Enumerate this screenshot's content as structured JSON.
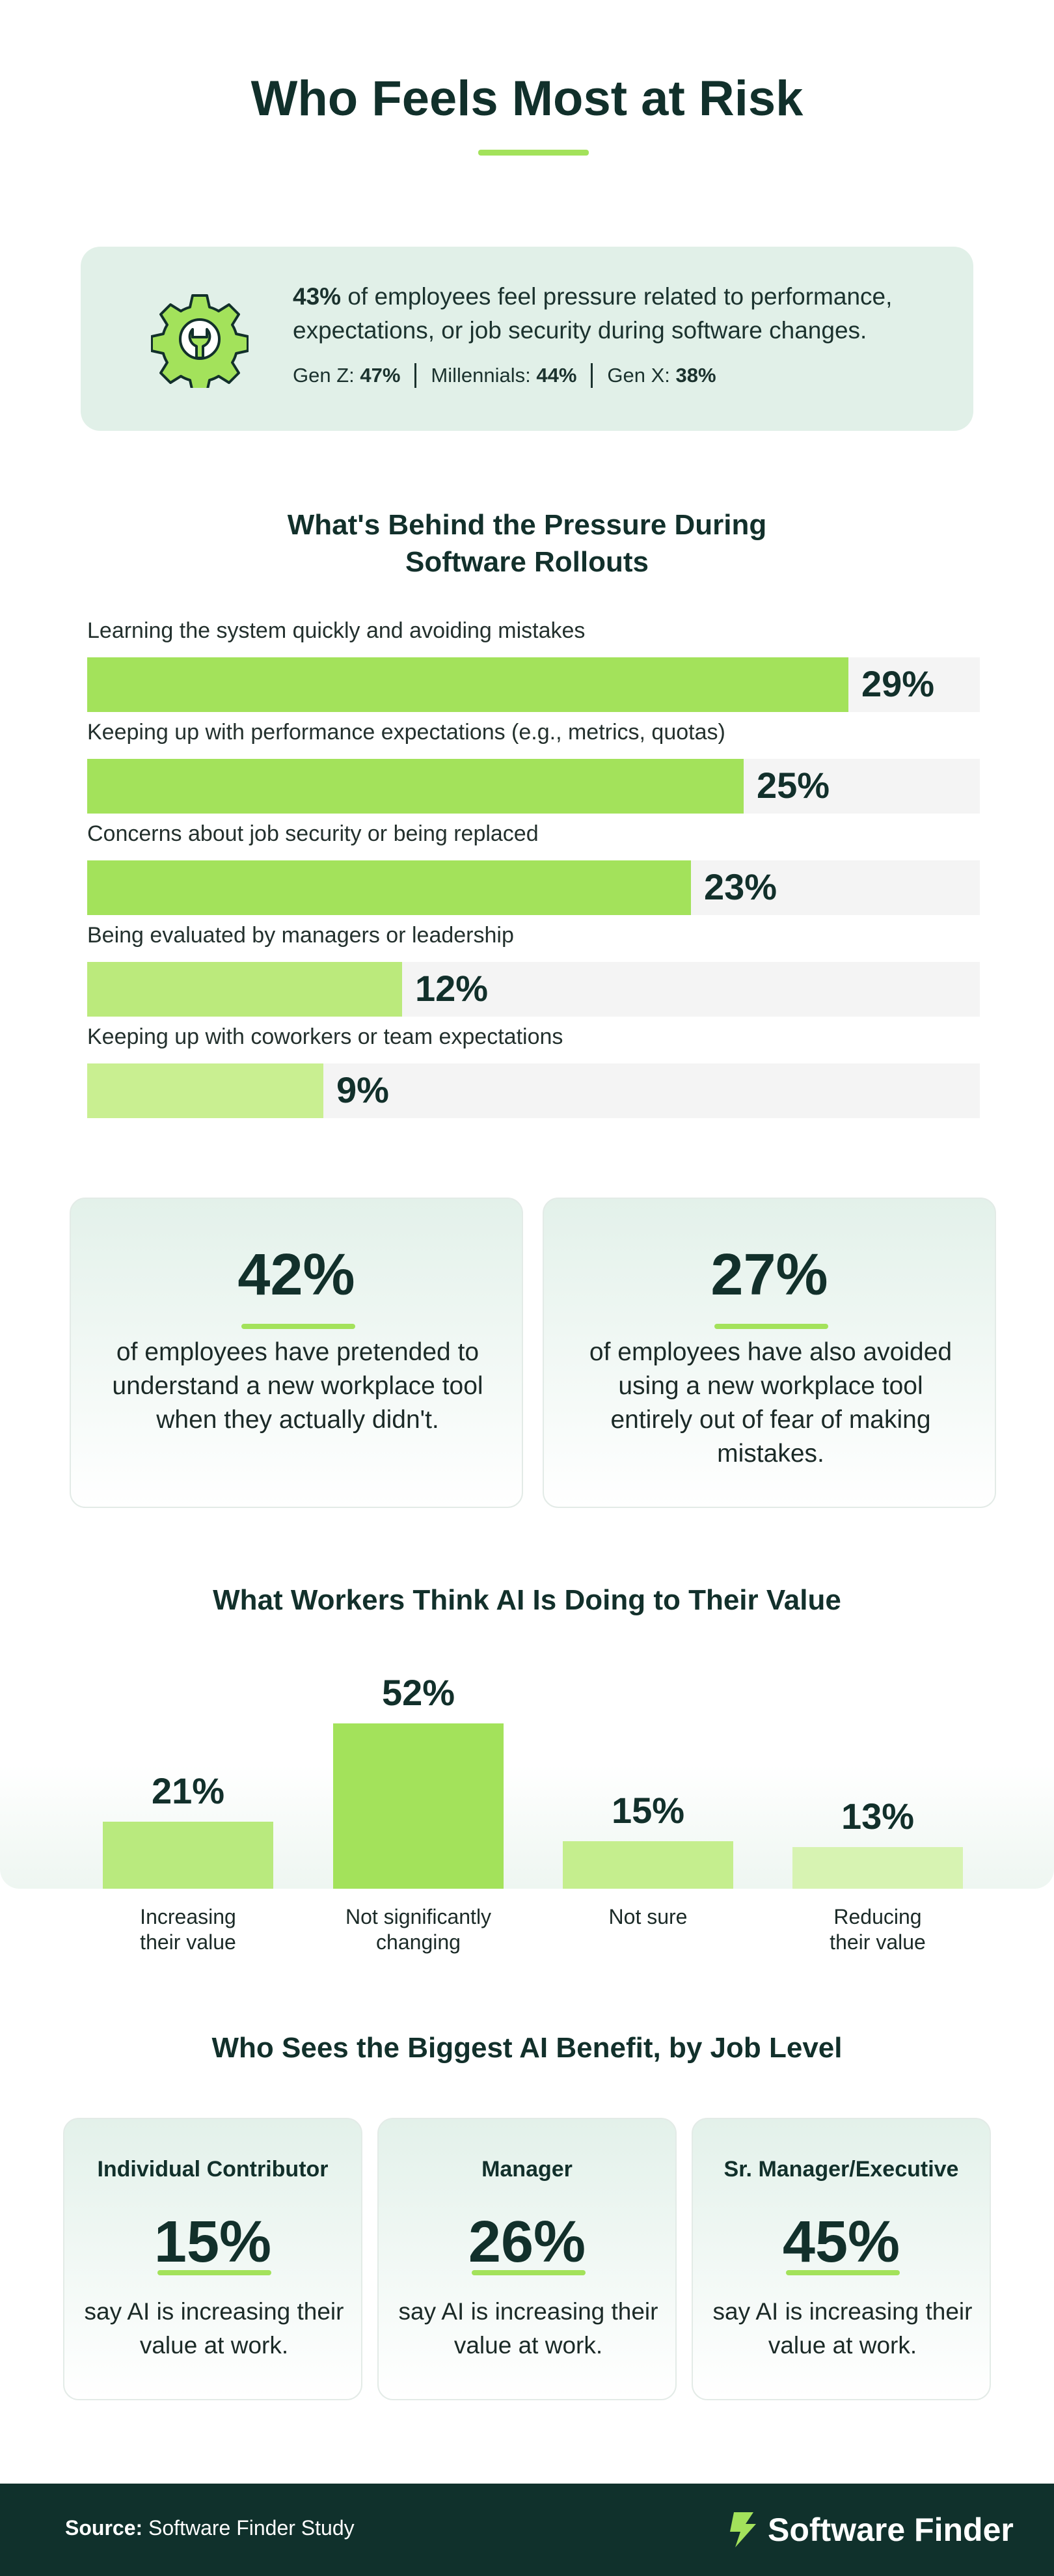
{
  "title": "Who Feels Most at Risk",
  "colors": {
    "accent": "#a3e25b",
    "dark": "#10312c",
    "card": "#e1f0e8"
  },
  "stat": {
    "icon": "gear-wrench-icon",
    "pct": "43%",
    "text": " of employees feel pressure related to performance, expectations, or job security during software changes.",
    "gens": [
      {
        "label": "Gen Z: ",
        "value": "47%"
      },
      {
        "label": "Millennials: ",
        "value": "44%"
      },
      {
        "label": "Gen X: ",
        "value": "38%"
      }
    ]
  },
  "pressure": {
    "title_line1": "What's Behind the Pressure During",
    "title_line2": "Software Rollouts"
  },
  "cards": [
    {
      "value": "42%",
      "text": "of employees have pretended to understand a new workplace tool when they actually didn't."
    },
    {
      "value": "27%",
      "text": "of employees have also avoided using a new workplace tool entirely out of fear of making mistakes."
    }
  ],
  "ai_value": {
    "title": "What Workers Think AI Is Doing to Their Value"
  },
  "job_level": {
    "title": "Who Sees the Biggest AI Benefit, by Job Level",
    "cards": [
      {
        "role": "Individual Contributor",
        "value": "15%",
        "text": "say AI is increasing their value at work."
      },
      {
        "role": "Manager",
        "value": "26%",
        "text": "say AI is increasing their value at work."
      },
      {
        "role": "Sr. Manager/Executive",
        "value": "45%",
        "text": "say AI is increasing their value at work."
      }
    ]
  },
  "footer": {
    "source_label": "Source:",
    "source_text": " Software Finder Study",
    "brand": "Software Finder",
    "brand_icon": "software-finder-logo-icon"
  },
  "chart_data": [
    {
      "type": "bar",
      "orientation": "horizontal",
      "title": "What's Behind the Pressure During Software Rollouts",
      "categories": [
        "Learning the system quickly and avoiding mistakes",
        "Keeping up with performance expectations (e.g., metrics, quotas)",
        "Concerns about job security or being replaced",
        "Being evaluated by managers or leadership",
        "Keeping up with coworkers or team expectations"
      ],
      "values": [
        29,
        25,
        23,
        12,
        9
      ],
      "labels": [
        "29%",
        "25%",
        "23%",
        "12%",
        "9%"
      ],
      "colors": [
        "#a3e25b",
        "#a3e25b",
        "#a3e25b",
        "#bbea7c",
        "#c9ef91"
      ],
      "xlim": [
        0,
        34
      ]
    },
    {
      "type": "bar",
      "orientation": "vertical",
      "title": "What Workers Think AI Is Doing to Their Value",
      "categories": [
        [
          "Increasing",
          "their value"
        ],
        [
          "Not significantly",
          "changing"
        ],
        [
          "Not sure"
        ],
        [
          "Reducing",
          "their value"
        ]
      ],
      "values": [
        21,
        52,
        15,
        13
      ],
      "labels": [
        "21%",
        "52%",
        "15%",
        "13%"
      ],
      "colors": [
        "#b9ea7e",
        "#a3e25b",
        "#c5ee8e",
        "#d7f3b2"
      ],
      "ylim": [
        0,
        52
      ]
    }
  ]
}
